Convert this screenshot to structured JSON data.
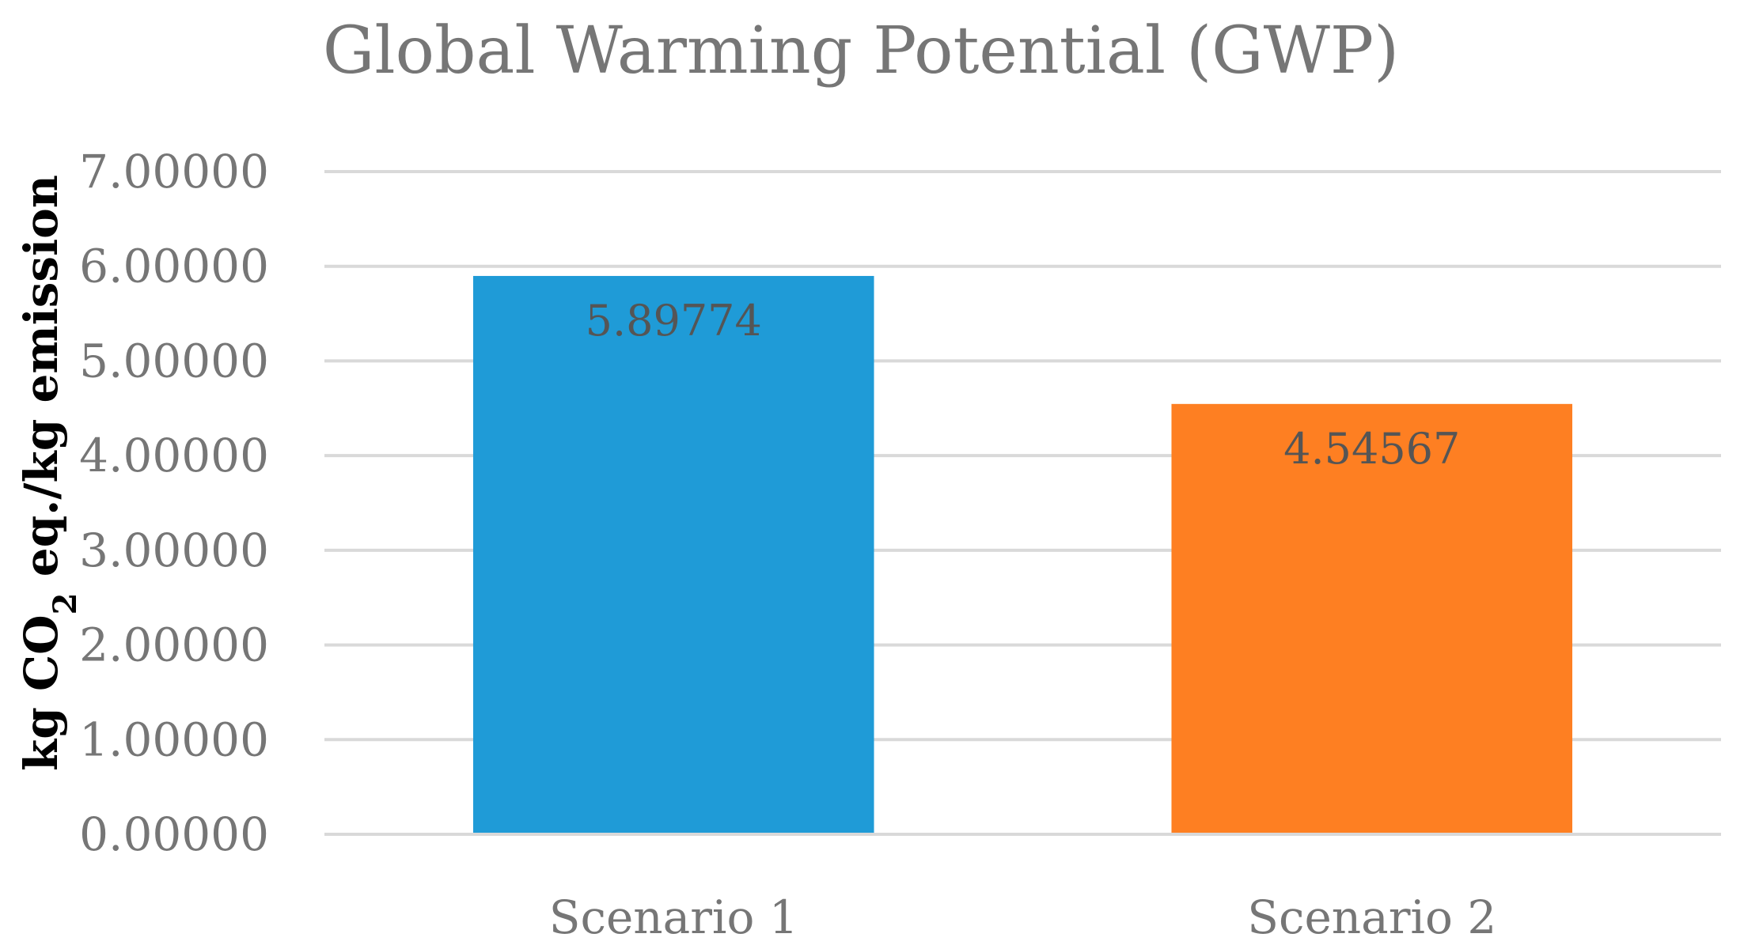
{
  "chart_data": {
    "type": "bar",
    "title": "Global Warming Potential (GWP)",
    "xlabel": "",
    "ylabel": {
      "prefix": "kg CO",
      "subscript": "2",
      "suffix": " eq./kg emission"
    },
    "categories": [
      "Scenario 1",
      "Scenario 2"
    ],
    "values": [
      5.89774,
      4.54567
    ],
    "data_labels": [
      "5.89774",
      "4.54567"
    ],
    "bar_colors": [
      "#1f9bd7",
      "#fe7f22"
    ],
    "ylim": [
      0,
      7
    ],
    "y_ticks": [
      0,
      1,
      2,
      3,
      4,
      5,
      6,
      7
    ],
    "y_tick_labels": [
      "0.00000",
      "1.00000",
      "2.00000",
      "3.00000",
      "4.00000",
      "5.00000",
      "6.00000",
      "7.00000"
    ],
    "grid": true,
    "legend": "none"
  }
}
